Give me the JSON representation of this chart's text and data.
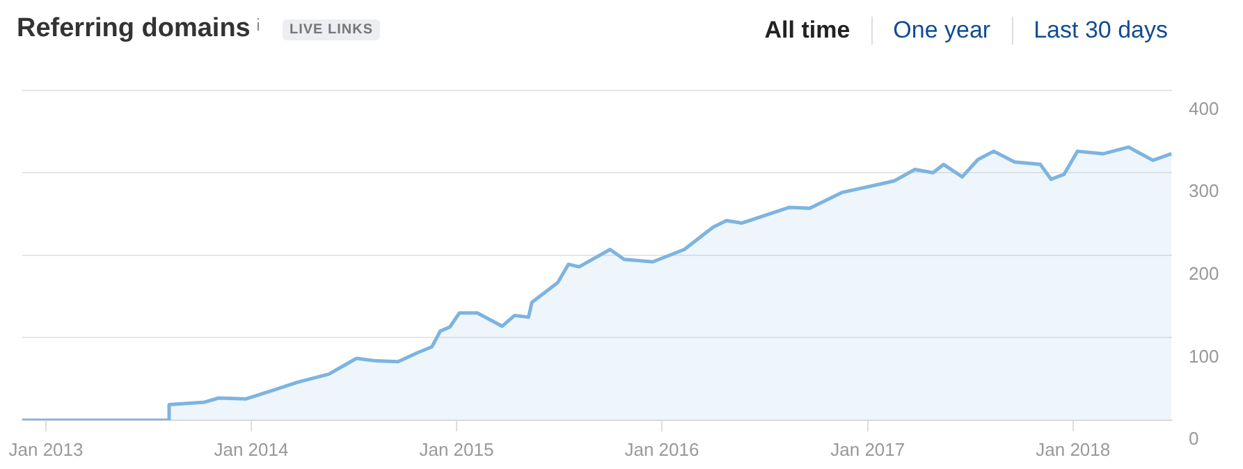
{
  "chart_data": {
    "type": "area",
    "title": "Referring domains",
    "annotations": [
      "LIVE LINKS",
      "All time",
      "One year",
      "Last 30 days"
    ],
    "x": [
      "2012-11-20",
      "2013-08-07",
      "2013-08-08",
      "2013-10-10",
      "2013-11-04",
      "2013-12-23",
      "2014-02-03",
      "2014-03-24",
      "2014-05-19",
      "2014-07-07",
      "2014-08-11",
      "2014-09-19",
      "2014-10-24",
      "2014-11-18",
      "2014-12-03",
      "2014-12-20",
      "2015-01-06",
      "2015-02-07",
      "2015-03-23",
      "2015-04-14",
      "2015-05-09",
      "2015-05-15",
      "2015-06-30",
      "2015-07-19",
      "2015-08-07",
      "2015-10-01",
      "2015-10-26",
      "2015-12-16",
      "2016-02-10",
      "2016-04-01",
      "2016-04-25",
      "2016-05-22",
      "2016-08-14",
      "2016-09-20",
      "2016-11-16",
      "2017-02-17",
      "2017-03-26",
      "2017-04-27",
      "2017-05-16",
      "2017-06-18",
      "2017-07-16",
      "2017-08-13",
      "2017-09-19",
      "2017-11-04",
      "2017-11-23",
      "2017-12-16",
      "2018-01-09",
      "2018-02-24",
      "2018-04-10",
      "2018-05-23",
      "2018-06-25"
    ],
    "series": [
      {
        "color": "#7db4e0",
        "values": [
          0,
          0,
          19,
          22,
          27,
          26,
          35,
          46,
          56,
          75,
          72,
          71,
          82,
          89,
          108,
          113,
          130,
          130,
          114,
          127,
          125,
          143,
          167,
          189,
          186,
          207,
          195,
          192,
          207,
          234,
          242,
          239,
          258,
          257,
          276,
          290,
          304,
          300,
          310,
          295,
          316,
          326,
          313,
          310,
          292,
          298,
          326,
          323,
          331,
          315,
          323
        ]
      }
    ],
    "xlim": [
      "2012-11-20",
      "2018-06-26"
    ],
    "xticks": [
      {
        "value": "2013-01-01",
        "label": "Jan 2013"
      },
      {
        "value": "2014-01-01",
        "label": "Jan 2014"
      },
      {
        "value": "2015-01-01",
        "label": "Jan 2015"
      },
      {
        "value": "2016-01-01",
        "label": "Jan 2016"
      },
      {
        "value": "2017-01-01",
        "label": "Jan 2017"
      },
      {
        "value": "2018-01-01",
        "label": "Jan 2018"
      }
    ],
    "ylim": [
      0,
      400
    ],
    "yticks": [
      0,
      100,
      200,
      300,
      400
    ],
    "grid": "y",
    "marker": "none",
    "line_style": "solid"
  }
}
